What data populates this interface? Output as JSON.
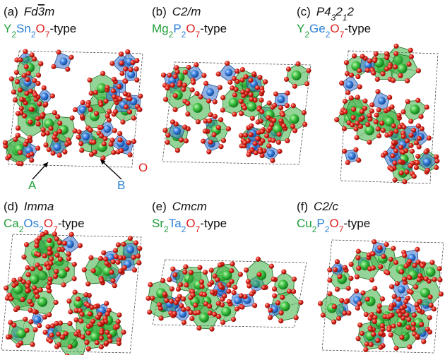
{
  "panels": [
    {
      "label": "(a)",
      "space_group": [
        {
          "text": "Fd"
        },
        {
          "text": "3",
          "overline": true
        },
        {
          "text": "m"
        }
      ],
      "formula": [
        {
          "text": "Y",
          "color": "#1f9e3a"
        },
        {
          "text": "2",
          "sub": true,
          "color": "#1f9e3a"
        },
        {
          "text": "Sn",
          "color": "#2a7fd4"
        },
        {
          "text": "2",
          "sub": true,
          "color": "#2a7fd4"
        },
        {
          "text": "O",
          "color": "#e02020"
        },
        {
          "text": "7",
          "sub": true,
          "color": "#e02020"
        },
        {
          "text": "-type",
          "color": "#111111"
        }
      ]
    },
    {
      "label": "(b)",
      "space_group": [
        {
          "text": "C2/m"
        }
      ],
      "formula": [
        {
          "text": "Mg",
          "color": "#1f9e3a"
        },
        {
          "text": "2",
          "sub": true,
          "color": "#1f9e3a"
        },
        {
          "text": "P",
          "color": "#2a7fd4"
        },
        {
          "text": "2",
          "sub": true,
          "color": "#2a7fd4"
        },
        {
          "text": "O",
          "color": "#e02020"
        },
        {
          "text": "7",
          "sub": true,
          "color": "#e02020"
        },
        {
          "text": "-type",
          "color": "#111111"
        }
      ]
    },
    {
      "label": "(c)",
      "space_group": [
        {
          "text": "P4"
        },
        {
          "text": "3",
          "sub": true
        },
        {
          "text": "2"
        },
        {
          "text": "1",
          "sub": true
        },
        {
          "text": "2"
        }
      ],
      "formula": [
        {
          "text": "Y",
          "color": "#1f9e3a"
        },
        {
          "text": "2",
          "sub": true,
          "color": "#1f9e3a"
        },
        {
          "text": "Ge",
          "color": "#2a7fd4"
        },
        {
          "text": "2",
          "sub": true,
          "color": "#2a7fd4"
        },
        {
          "text": "O",
          "color": "#e02020"
        },
        {
          "text": "7",
          "sub": true,
          "color": "#e02020"
        },
        {
          "text": "-type",
          "color": "#111111"
        }
      ]
    },
    {
      "label": "(d)",
      "space_group": [
        {
          "text": "Imma"
        }
      ],
      "formula": [
        {
          "text": "Ca",
          "color": "#1f9e3a"
        },
        {
          "text": "2",
          "sub": true,
          "color": "#1f9e3a"
        },
        {
          "text": "Os",
          "color": "#2a7fd4"
        },
        {
          "text": "2",
          "sub": true,
          "color": "#2a7fd4"
        },
        {
          "text": "O",
          "color": "#e02020"
        },
        {
          "text": "7",
          "sub": true,
          "color": "#e02020"
        },
        {
          "text": "-type",
          "color": "#111111"
        }
      ]
    },
    {
      "label": "(e)",
      "space_group": [
        {
          "text": "Cmcm"
        }
      ],
      "formula": [
        {
          "text": "Sr",
          "color": "#1f9e3a"
        },
        {
          "text": "2",
          "sub": true,
          "color": "#1f9e3a"
        },
        {
          "text": "Ta",
          "color": "#2a7fd4"
        },
        {
          "text": "2",
          "sub": true,
          "color": "#2a7fd4"
        },
        {
          "text": "O",
          "color": "#e02020"
        },
        {
          "text": "7",
          "sub": true,
          "color": "#e02020"
        },
        {
          "text": "-type",
          "color": "#111111"
        }
      ]
    },
    {
      "label": "(f)",
      "space_group": [
        {
          "text": "C2/c"
        }
      ],
      "formula": [
        {
          "text": "Cu",
          "color": "#1f9e3a"
        },
        {
          "text": "2",
          "sub": true,
          "color": "#1f9e3a"
        },
        {
          "text": "P",
          "color": "#2a7fd4"
        },
        {
          "text": "2",
          "sub": true,
          "color": "#2a7fd4"
        },
        {
          "text": "O",
          "color": "#e02020"
        },
        {
          "text": "7",
          "sub": true,
          "color": "#e02020"
        },
        {
          "text": "-type",
          "color": "#111111"
        }
      ]
    }
  ],
  "site_labels": [
    {
      "text": "A",
      "color": "#1f9e3a"
    },
    {
      "text": "B",
      "color": "#2a7fd4"
    },
    {
      "text": "O",
      "color": "#e02020"
    }
  ]
}
